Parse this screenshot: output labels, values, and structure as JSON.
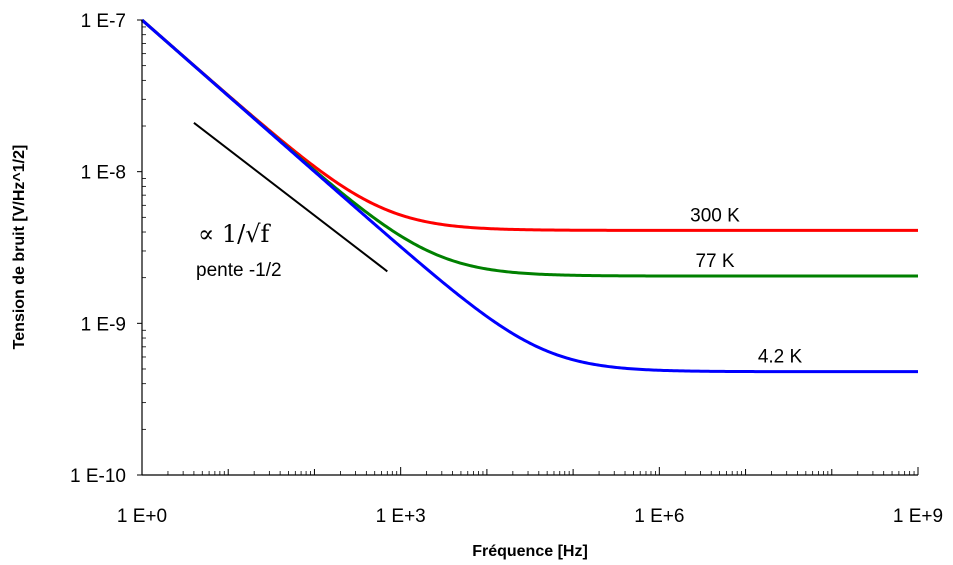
{
  "chart_data": {
    "type": "line",
    "xscale": "log",
    "yscale": "log",
    "xlabel": "Fréquence [Hz]",
    "ylabel": "Tension de bruit [V/Hz^1/2]",
    "xlim": [
      1,
      1000000000
    ],
    "ylim": [
      1e-10,
      1e-07
    ],
    "grid": false,
    "xticks": [
      {
        "value": 1,
        "label": "1 E+0"
      },
      {
        "value": 1000,
        "label": "1 E+3"
      },
      {
        "value": 1000000,
        "label": "1 E+6"
      },
      {
        "value": 1000000000,
        "label": "1 E+9"
      }
    ],
    "yticks": [
      {
        "value": 1e-07,
        "label": "1 E-7"
      },
      {
        "value": 1e-08,
        "label": "1 E-8"
      },
      {
        "value": 1e-09,
        "label": "1 E-9"
      },
      {
        "value": 1e-10,
        "label": "1 E-10"
      }
    ],
    "series": [
      {
        "name": "300 K",
        "color": "#ff0000",
        "a": 1e-07,
        "floor": 4.1e-09
      },
      {
        "name": "77 K",
        "color": "#008000",
        "a": 1e-07,
        "floor": 2.05e-09
      },
      {
        "name": "4.2 K",
        "color": "#0000ff",
        "a": 1e-07,
        "floor": 4.8e-10
      }
    ],
    "slope_line": {
      "color": "#000000",
      "x": [
        4,
        700
      ],
      "y": [
        2.1e-08,
        2.2e-09
      ]
    },
    "annotations": {
      "proportional": "∝ 1/√f",
      "slope_text": "pente -1/2"
    }
  }
}
